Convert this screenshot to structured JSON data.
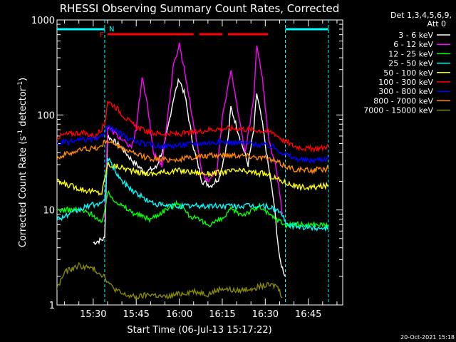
{
  "chart_data": {
    "type": "line",
    "title": "RHESSI Observing Summary Count Rates, Corrected",
    "xlabel": "Start Time (06-Jul-13 15:17:22)",
    "ylabel": "Corrected Count Rate (s⁻¹ detector⁻¹)",
    "ylabel_main": "Corrected Count Rate (s",
    "ylabel_sup1": "-1",
    "ylabel_mid": " detector",
    "ylabel_sup2": "-1",
    "ylabel_end": ")",
    "y_scale": "log",
    "ylim": [
      1,
      1000
    ],
    "xlim": [
      "15:17:22",
      "16:57:00"
    ],
    "x_ticks": [
      "15:30",
      "15:45",
      "16:00",
      "16:15",
      "16:30",
      "16:45"
    ],
    "y_ticks": [
      "1",
      "10",
      "100",
      "1000"
    ],
    "legend_header": [
      "Det 1,3,4,5,6,9,",
      "Att 0"
    ],
    "legend_placement": "right",
    "footer_date": "20-Oct-2021 15:18",
    "markers": {
      "night_label": "N",
      "flare_label": "F"
    },
    "night_intervals": [
      [
        "15:17:22",
        "15:34:00"
      ],
      [
        "16:37:00",
        "16:52:00"
      ]
    ],
    "flare_intervals": [
      [
        "15:35:00",
        "16:05:00"
      ],
      [
        "16:07:00",
        "16:15:00"
      ],
      [
        "16:17:00",
        "16:31:00"
      ]
    ],
    "series": [
      {
        "name": "3 - 6 keV",
        "color": "#ffffff",
        "points": [
          [
            "15:30",
            4.5
          ],
          [
            "15:34",
            5
          ],
          [
            "15:35",
            60
          ],
          [
            "15:40",
            45
          ],
          [
            "15:44",
            32
          ],
          [
            "15:48",
            25
          ],
          [
            "15:52",
            28
          ],
          [
            "15:55",
            50
          ],
          [
            "15:58",
            150
          ],
          [
            "16:00",
            240
          ],
          [
            "16:02",
            160
          ],
          [
            "16:05",
            45
          ],
          [
            "16:08",
            20
          ],
          [
            "16:11",
            18
          ],
          [
            "16:14",
            22
          ],
          [
            "16:17",
            55
          ],
          [
            "16:18",
            120
          ],
          [
            "16:21",
            60
          ],
          [
            "16:24",
            30
          ],
          [
            "16:26",
            70
          ],
          [
            "16:27",
            170
          ],
          [
            "16:29",
            80
          ],
          [
            "16:31",
            30
          ],
          [
            "16:33",
            12
          ],
          [
            "16:35",
            3
          ],
          [
            "16:37",
            2
          ]
        ]
      },
      {
        "name": "6 - 12 keV",
        "color": "#ff00ff",
        "points": [
          [
            "15:34",
            8
          ],
          [
            "15:35",
            75
          ],
          [
            "15:40",
            55
          ],
          [
            "15:43",
            45
          ],
          [
            "15:45",
            70
          ],
          [
            "15:47",
            250
          ],
          [
            "15:49",
            120
          ],
          [
            "15:51",
            40
          ],
          [
            "15:54",
            30
          ],
          [
            "15:58",
            330
          ],
          [
            "16:00",
            560
          ],
          [
            "16:02",
            280
          ],
          [
            "16:05",
            80
          ],
          [
            "16:08",
            25
          ],
          [
            "16:10",
            20
          ],
          [
            "16:13",
            25
          ],
          [
            "16:15",
            90
          ],
          [
            "16:18",
            300
          ],
          [
            "16:20",
            130
          ],
          [
            "16:23",
            40
          ],
          [
            "16:26",
            150
          ],
          [
            "16:27",
            560
          ],
          [
            "16:29",
            250
          ],
          [
            "16:31",
            60
          ],
          [
            "16:34",
            25
          ],
          [
            "16:36",
            9
          ]
        ]
      },
      {
        "name": "12 - 25 keV",
        "color": "#00ff00",
        "points": [
          [
            "15:17",
            10
          ],
          [
            "15:25",
            10
          ],
          [
            "15:30",
            9
          ],
          [
            "15:33",
            7
          ],
          [
            "15:35",
            15
          ],
          [
            "15:40",
            11
          ],
          [
            "15:45",
            9
          ],
          [
            "15:50",
            8
          ],
          [
            "15:55",
            10
          ],
          [
            "16:00",
            12
          ],
          [
            "16:03",
            9
          ],
          [
            "16:06",
            8
          ],
          [
            "16:10",
            7
          ],
          [
            "16:15",
            8
          ],
          [
            "16:18",
            10
          ],
          [
            "16:22",
            9
          ],
          [
            "16:26",
            10
          ],
          [
            "16:28",
            11
          ],
          [
            "16:31",
            9
          ],
          [
            "16:34",
            8
          ],
          [
            "16:37",
            7
          ],
          [
            "16:45",
            7
          ],
          [
            "16:52",
            7
          ]
        ]
      },
      {
        "name": "25 - 50 keV",
        "color": "#00ffff",
        "points": [
          [
            "15:17",
            8
          ],
          [
            "15:22",
            9
          ],
          [
            "15:28",
            11
          ],
          [
            "15:34",
            12
          ],
          [
            "15:35",
            35
          ],
          [
            "15:40",
            20
          ],
          [
            "15:45",
            15
          ],
          [
            "15:50",
            12
          ],
          [
            "15:55",
            11
          ],
          [
            "16:00",
            11
          ],
          [
            "16:05",
            11
          ],
          [
            "16:10",
            11
          ],
          [
            "16:15",
            11
          ],
          [
            "16:20",
            11
          ],
          [
            "16:25",
            11
          ],
          [
            "16:30",
            11
          ],
          [
            "16:34",
            10
          ],
          [
            "16:36",
            9
          ],
          [
            "16:37",
            7
          ],
          [
            "16:45",
            6.5
          ],
          [
            "16:52",
            6.5
          ]
        ]
      },
      {
        "name": "50 - 100 keV",
        "color": "#ffff00",
        "points": [
          [
            "15:17",
            20
          ],
          [
            "15:22",
            18
          ],
          [
            "15:28",
            16
          ],
          [
            "15:33",
            15
          ],
          [
            "15:35",
            30
          ],
          [
            "15:40",
            28
          ],
          [
            "15:45",
            25
          ],
          [
            "15:50",
            24
          ],
          [
            "15:55",
            25
          ],
          [
            "16:00",
            26
          ],
          [
            "16:05",
            25
          ],
          [
            "16:10",
            24
          ],
          [
            "16:15",
            25
          ],
          [
            "16:20",
            26
          ],
          [
            "16:25",
            25
          ],
          [
            "16:30",
            24
          ],
          [
            "16:33",
            22
          ],
          [
            "16:36",
            20
          ],
          [
            "16:40",
            18
          ],
          [
            "16:45",
            17
          ],
          [
            "16:52",
            18
          ]
        ]
      },
      {
        "name": "100 - 300 keV",
        "color": "#ff0000",
        "points": [
          [
            "15:17",
            58
          ],
          [
            "15:20",
            62
          ],
          [
            "15:25",
            65
          ],
          [
            "15:28",
            63
          ],
          [
            "15:31",
            60
          ],
          [
            "15:34",
            80
          ],
          [
            "15:35",
            140
          ],
          [
            "15:38",
            120
          ],
          [
            "15:41",
            95
          ],
          [
            "15:44",
            78
          ],
          [
            "15:47",
            70
          ],
          [
            "15:50",
            65
          ],
          [
            "15:55",
            63
          ],
          [
            "16:00",
            63
          ],
          [
            "16:05",
            65
          ],
          [
            "16:10",
            70
          ],
          [
            "16:15",
            72
          ],
          [
            "16:20",
            72
          ],
          [
            "16:25",
            70
          ],
          [
            "16:30",
            68
          ],
          [
            "16:33",
            65
          ],
          [
            "16:36",
            55
          ],
          [
            "16:40",
            47
          ],
          [
            "16:45",
            44
          ],
          [
            "16:50",
            45
          ],
          [
            "16:52",
            48
          ]
        ]
      },
      {
        "name": "300 - 800 keV",
        "color": "#0000ff",
        "points": [
          [
            "15:17",
            50
          ],
          [
            "15:22",
            52
          ],
          [
            "15:27",
            55
          ],
          [
            "15:32",
            55
          ],
          [
            "15:35",
            75
          ],
          [
            "15:38",
            68
          ],
          [
            "15:42",
            57
          ],
          [
            "15:45",
            52
          ],
          [
            "15:50",
            48
          ],
          [
            "15:55",
            47
          ],
          [
            "16:00",
            48
          ],
          [
            "16:05",
            50
          ],
          [
            "16:10",
            51
          ],
          [
            "16:15",
            52
          ],
          [
            "16:20",
            51
          ],
          [
            "16:25",
            50
          ],
          [
            "16:30",
            48
          ],
          [
            "16:33",
            46
          ],
          [
            "16:36",
            40
          ],
          [
            "16:40",
            35
          ],
          [
            "16:45",
            33
          ],
          [
            "16:52",
            35
          ]
        ]
      },
      {
        "name": "800 - 7000 keV",
        "color": "#ff8800",
        "points": [
          [
            "15:17",
            35
          ],
          [
            "15:22",
            40
          ],
          [
            "15:27",
            44
          ],
          [
            "15:32",
            45
          ],
          [
            "15:35",
            55
          ],
          [
            "15:38",
            48
          ],
          [
            "15:42",
            42
          ],
          [
            "15:45",
            38
          ],
          [
            "15:50",
            35
          ],
          [
            "15:55",
            34
          ],
          [
            "16:00",
            34
          ],
          [
            "16:05",
            36
          ],
          [
            "16:10",
            37
          ],
          [
            "16:15",
            38
          ],
          [
            "16:20",
            38
          ],
          [
            "16:25",
            37
          ],
          [
            "16:30",
            35
          ],
          [
            "16:33",
            33
          ],
          [
            "16:36",
            30
          ],
          [
            "16:40",
            27
          ],
          [
            "16:45",
            26
          ],
          [
            "16:52",
            27
          ]
        ]
      },
      {
        "name": "7000 - 15000 keV",
        "color": "#888800",
        "points": [
          [
            "15:17",
            1.4
          ],
          [
            "15:20",
            2.2
          ],
          [
            "15:25",
            2.6
          ],
          [
            "15:30",
            2.4
          ],
          [
            "15:34",
            2.0
          ],
          [
            "15:36",
            1.6
          ],
          [
            "15:40",
            1.3
          ],
          [
            "15:45",
            1.2
          ],
          [
            "15:50",
            1.3
          ],
          [
            "15:55",
            1.2
          ],
          [
            "16:00",
            1.3
          ],
          [
            "16:05",
            1.4
          ],
          [
            "16:10",
            1.3
          ],
          [
            "16:15",
            1.5
          ],
          [
            "16:20",
            1.4
          ],
          [
            "16:25",
            1.5
          ],
          [
            "16:30",
            1.6
          ],
          [
            "16:34",
            1.6
          ],
          [
            "16:36",
            1.2
          ]
        ]
      }
    ]
  }
}
